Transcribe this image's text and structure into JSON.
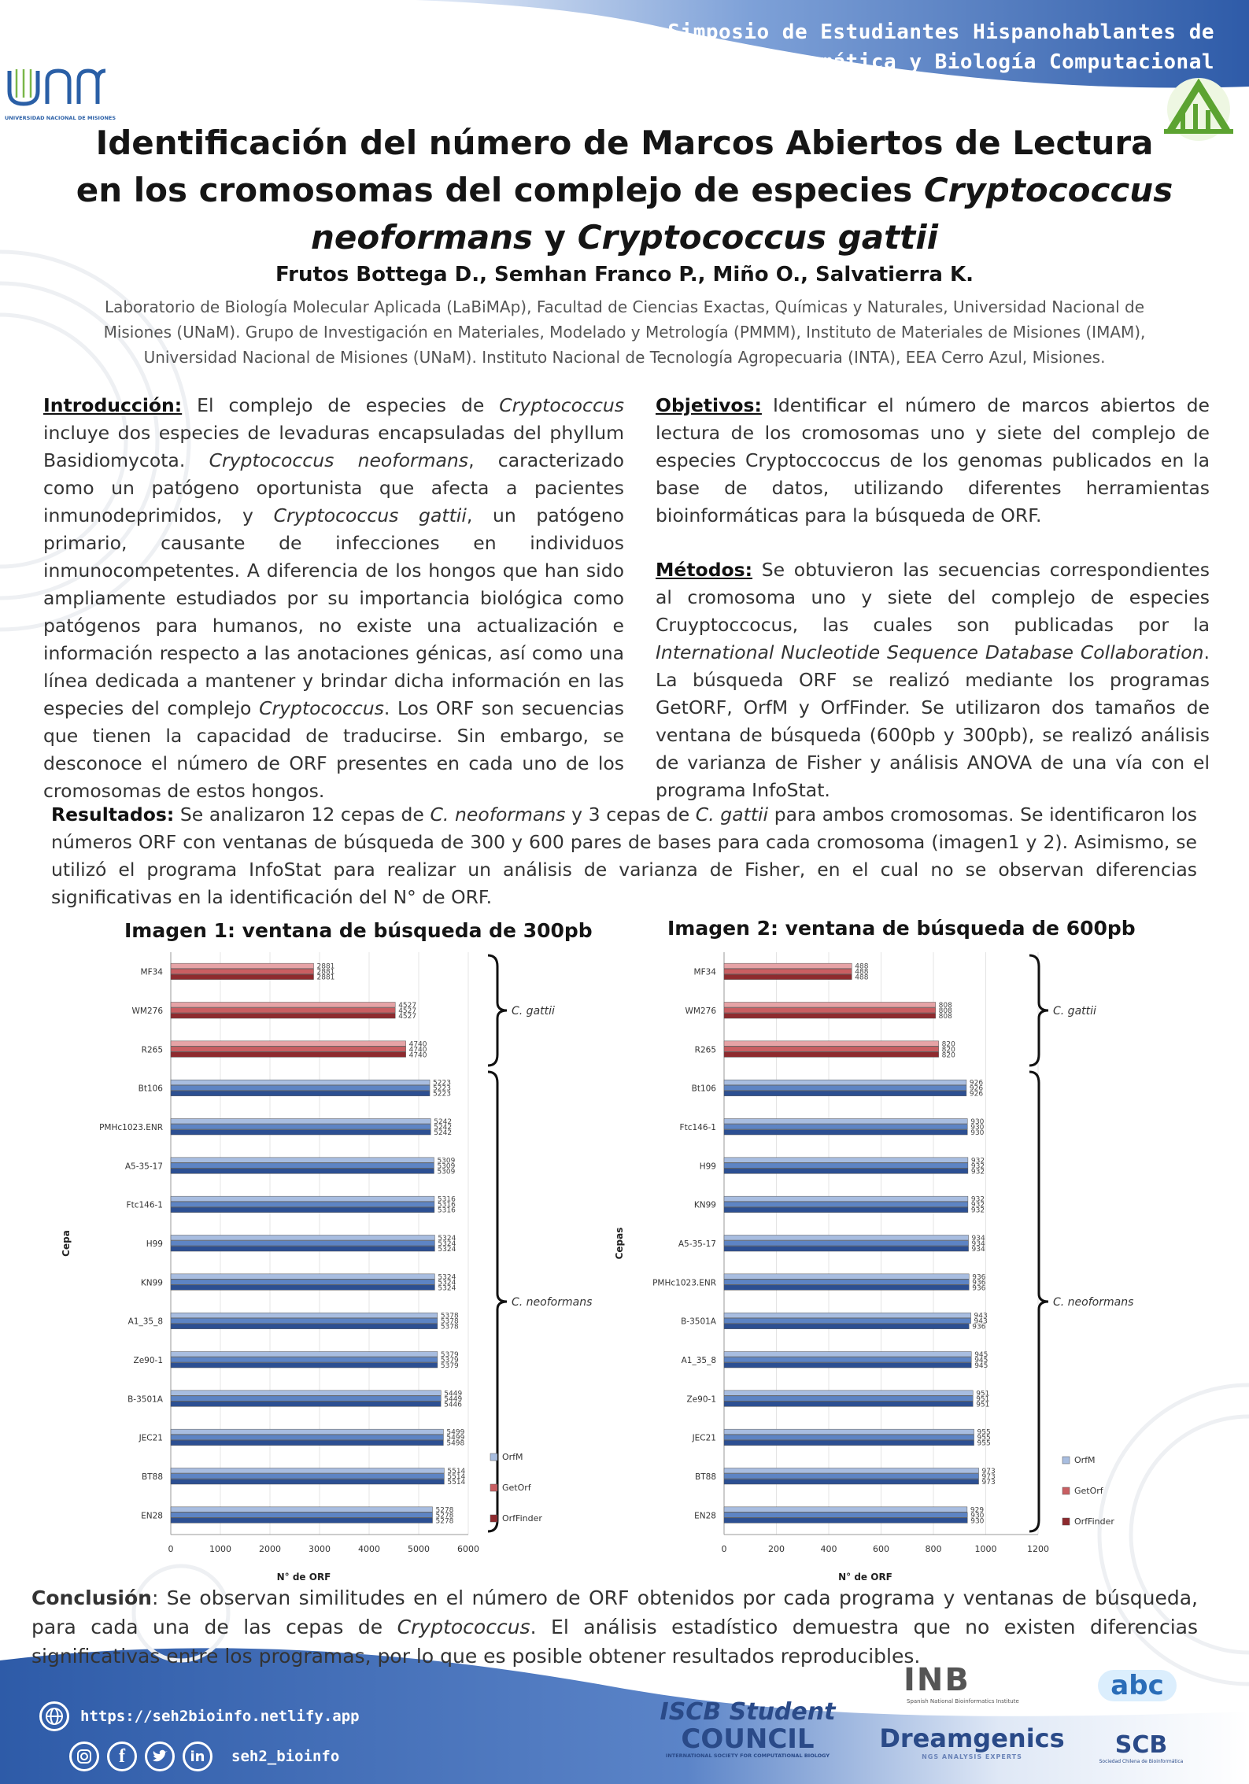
{
  "header": {
    "line1": "Simposio de Estudiantes Hispanohablantes de",
    "line2": "Bioinformática y Biología Computacional"
  },
  "logos": {
    "unam_caption": "UNIVERSIDAD NACIONAL DE MISIONES"
  },
  "title": {
    "pre": "Identificación del número de Marcos Abiertos de Lectura en los cromosomas del complejo de especies ",
    "species1": "Cryptococcus neoformans",
    "mid": " y ",
    "species2": "Cryptococcus gattii"
  },
  "authors": "Frutos Bottega D., Semhan Franco P., Miño O., Salvatierra K.",
  "affiliation": "Laboratorio de Biología Molecular Aplicada (LaBiMAp), Facultad de Ciencias Exactas, Químicas y Naturales, Universidad Nacional de Misiones (UNaM). Grupo de Investigación en Materiales, Modelado y Metrología (PMMM), Instituto de Materiales de Misiones (IMAM), Universidad Nacional de Misiones (UNaM). Instituto Nacional de Tecnología Agropecuaria (INTA), EEA Cerro Azul, Misiones.",
  "intro": {
    "heading": "Introducción:",
    "t1": " El complejo de especies de ",
    "i1": "Cryptococcus",
    "t2": " incluye dos especies de levaduras encapsuladas del phyllum Basidiomycota. ",
    "i2": "Cryptococcus neoformans",
    "t3": ", caracterizado como un patógeno oportunista que afecta a pacientes inmunodeprimidos, y ",
    "i3": "Cryptococcus gattii",
    "t4": ", un patógeno primario, causante de infecciones en individuos inmunocompetentes. A diferencia de los hongos que han sido ampliamente estudiados por su importancia biológica como patógenos para humanos, no existe una actualización e información respecto a las anotaciones génicas, así como una línea dedicada a mantener y brindar dicha información en las especies del complejo ",
    "i4": "Cryptococcus",
    "t5": ". Los ORF son secuencias que tienen la capacidad de traducirse. Sin embargo, se desconoce el número de ORF presentes en cada uno de los cromosomas de estos hongos."
  },
  "objectives": {
    "heading": "Objetivos:",
    "text": " Identificar el número de marcos abiertos de lectura de los cromosomas uno y siete del complejo de especies Cryptoccoccus de los genomas publicados en la base de datos, utilizando diferentes herramientas bioinformáticas para la búsqueda de ORF."
  },
  "methods": {
    "heading": "Métodos:",
    "t1": " Se obtuvieron las secuencias correspondientes al cromosoma uno y siete del complejo de especies Cruyptoccocus, las cuales son publicadas por la ",
    "i1": "International Nucleotide Sequence Database Collaboration",
    "t2": ". La búsqueda ORF se realizó mediante los programas GetORF, OrfM y OrfFinder. Se utilizaron dos tamaños de ventana de búsqueda (600pb y 300pb), se realizó análisis de varianza de Fisher y análisis ANOVA de una vía con el programa InfoStat."
  },
  "results": {
    "heading": "Resultados:",
    "t1": " Se analizaron 12 cepas de ",
    "i1": "C. neoformans",
    "t2": " y 3 cepas de ",
    "i2": "C. gattii",
    "t3": " para ambos cromosomas.  Se identificaron los números ORF con ventanas de búsqueda de 300 y 600 pares de bases para cada cromosoma (imagen1 y 2). Asimismo, se utilizó el programa InfoStat para realizar un análisis de varianza de Fisher, en el cual no se observan diferencias significativas en la identificación del N° de ORF."
  },
  "conclusion": {
    "heading": "Conclusión",
    "t1": ":  Se observan similitudes en el número de ORF obtenidos por cada programa y ventanas de búsqueda, para cada una de las cepas de ",
    "i1": "Cryptococcus",
    "t2": ". El análisis estadístico demuestra que no existen diferencias significativas entre los programas, por lo que es posible obtener resultados reproducibles."
  },
  "footer": {
    "url": "https://seh2bioinfo.netlify.app",
    "handle": "seh2_bioinfo",
    "iscb_top": "ISCB Student",
    "iscb_main": "COUNCIL",
    "iscb_sub": "INTERNATIONAL SOCIETY FOR COMPUTATIONAL BIOLOGY",
    "inb": "INB",
    "inb_sub": "Spanish National Bioinformatics Institute",
    "dreamgenics": "Dreamgenics",
    "dreamgenics_sub": "NGS ANALYSIS EXPERTS",
    "abc": "abc",
    "scb": "SCB",
    "scb_sub": "Sociedad Chilena de Bioinformática"
  },
  "colors": {
    "orfm_gattii": "#e6a3a6",
    "getorf_gattii": "#c95e62",
    "orffinder_gattii": "#8e2a2e",
    "orfm_neo": "#a8bde0",
    "getorf_neo": "#5d84c4",
    "orffinder_neo": "#2c4f92",
    "accent": "#3b66b0"
  },
  "chart_data": [
    {
      "type": "bar",
      "title": "Imagen 1: ventana de búsqueda de 300pb",
      "xlabel": "N° de ORF",
      "ylabel": "Cepa",
      "xlim": [
        0,
        6000
      ],
      "xticks": [
        0,
        1000,
        2000,
        3000,
        4000,
        5000,
        6000
      ],
      "categories": [
        "MF34",
        "WM276",
        "R265",
        "Bt106",
        "PMHc1023.ENR",
        "A5-35-17",
        "Ftc146-1",
        "H99",
        "KN99",
        "A1_35_8",
        "Ze90-1",
        "B-3501A",
        "JEC21",
        "BT88",
        "EN28"
      ],
      "series": [
        {
          "name": "OrfM",
          "values": [
            2881,
            4527,
            4740,
            5223,
            5242,
            5309,
            5316,
            5324,
            5324,
            5378,
            5379,
            5449,
            5499,
            5514,
            5278
          ]
        },
        {
          "name": "GetOrf",
          "values": [
            2881,
            4527,
            4740,
            5223,
            5242,
            5309,
            5316,
            5324,
            5324,
            5378,
            5379,
            5449,
            5499,
            5514,
            5278
          ]
        },
        {
          "name": "OrfFinder",
          "values": [
            2881,
            4527,
            4740,
            5223,
            5242,
            5309,
            5316,
            5324,
            5324,
            5378,
            5379,
            5446,
            5498,
            5514,
            5278
          ]
        }
      ],
      "groups": [
        {
          "label": "C. gattii",
          "from": 0,
          "to": 2
        },
        {
          "label": "C. neoformans",
          "from": 3,
          "to": 14
        }
      ]
    },
    {
      "type": "bar",
      "title": "Imagen 2: ventana de búsqueda de 600pb",
      "xlabel": "N° de ORF",
      "ylabel": "Cepas",
      "xlim": [
        0,
        1200
      ],
      "xticks": [
        0,
        200,
        400,
        600,
        800,
        1000,
        1200
      ],
      "categories": [
        "MF34",
        "WM276",
        "R265",
        "Bt106",
        "Ftc146-1",
        "H99",
        "KN99",
        "A5-35-17",
        "PMHc1023.ENR",
        "B-3501A",
        "A1_35_8",
        "Ze90-1",
        "JEC21",
        "BT88",
        "EN28"
      ],
      "series": [
        {
          "name": "OrfM",
          "values": [
            488,
            808,
            820,
            926,
            930,
            932,
            932,
            934,
            936,
            943,
            945,
            951,
            955,
            973,
            929
          ]
        },
        {
          "name": "GetOrf",
          "values": [
            488,
            808,
            820,
            926,
            930,
            932,
            932,
            934,
            936,
            943,
            945,
            951,
            955,
            973,
            930
          ]
        },
        {
          "name": "OrfFinder",
          "values": [
            488,
            808,
            820,
            926,
            930,
            932,
            932,
            934,
            936,
            936,
            945,
            951,
            955,
            973,
            930
          ]
        }
      ],
      "groups": [
        {
          "label": "C. gattii",
          "from": 0,
          "to": 2
        },
        {
          "label": "C. neoformans",
          "from": 3,
          "to": 14
        }
      ]
    }
  ]
}
